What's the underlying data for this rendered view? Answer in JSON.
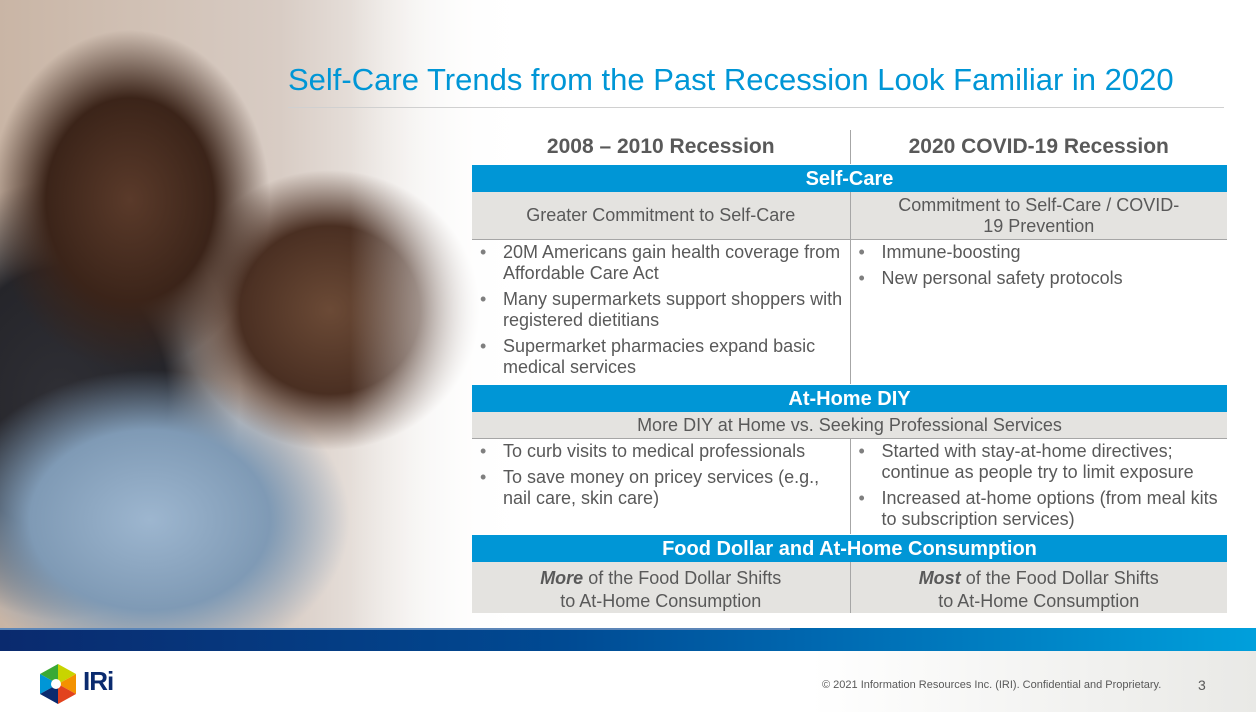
{
  "title": "Self-Care Trends from the Past Recession Look Familiar in 2020",
  "columns": [
    "2008 – 2010 Recession",
    "2020 COVID-19 Recession"
  ],
  "sections": [
    {
      "band": "Self-Care",
      "sub_left": "Greater Commitment to Self-Care",
      "sub_right": "Commitment to Self-Care / COVID-19 Prevention",
      "left": [
        "20M Americans gain health coverage from Affordable Care Act",
        "Many supermarkets support shoppers with registered dietitians",
        "Supermarket pharmacies expand basic medical services"
      ],
      "right": [
        "Immune-boosting",
        "New personal safety protocols"
      ]
    },
    {
      "band": "At-Home DIY",
      "sub": "More DIY at Home vs. Seeking Professional Services",
      "left": [
        "To curb visits to medical professionals",
        "To save money on pricey services (e.g., nail care, skin care)"
      ],
      "right": [
        "Started with stay-at-home directives; continue as people try to limit exposure",
        "Increased at-home options (from meal kits to subscription services)"
      ]
    },
    {
      "band": "Food Dollar and At-Home Consumption",
      "left_em": "More",
      "left_rest": " of the Food Dollar Shifts to At-Home Consumption",
      "right_em": "Most",
      "right_rest": " of the Food Dollar Shifts to At-Home Consumption"
    }
  ],
  "footer": {
    "logo": "IRi",
    "copyright": "© 2021 Information Resources Inc. (IRI). Confidential and Proprietary.",
    "page": "3"
  },
  "colors": {
    "accent": "#0096d6",
    "navy": "#0a2a6e",
    "subrow": "#e4e3e0"
  }
}
